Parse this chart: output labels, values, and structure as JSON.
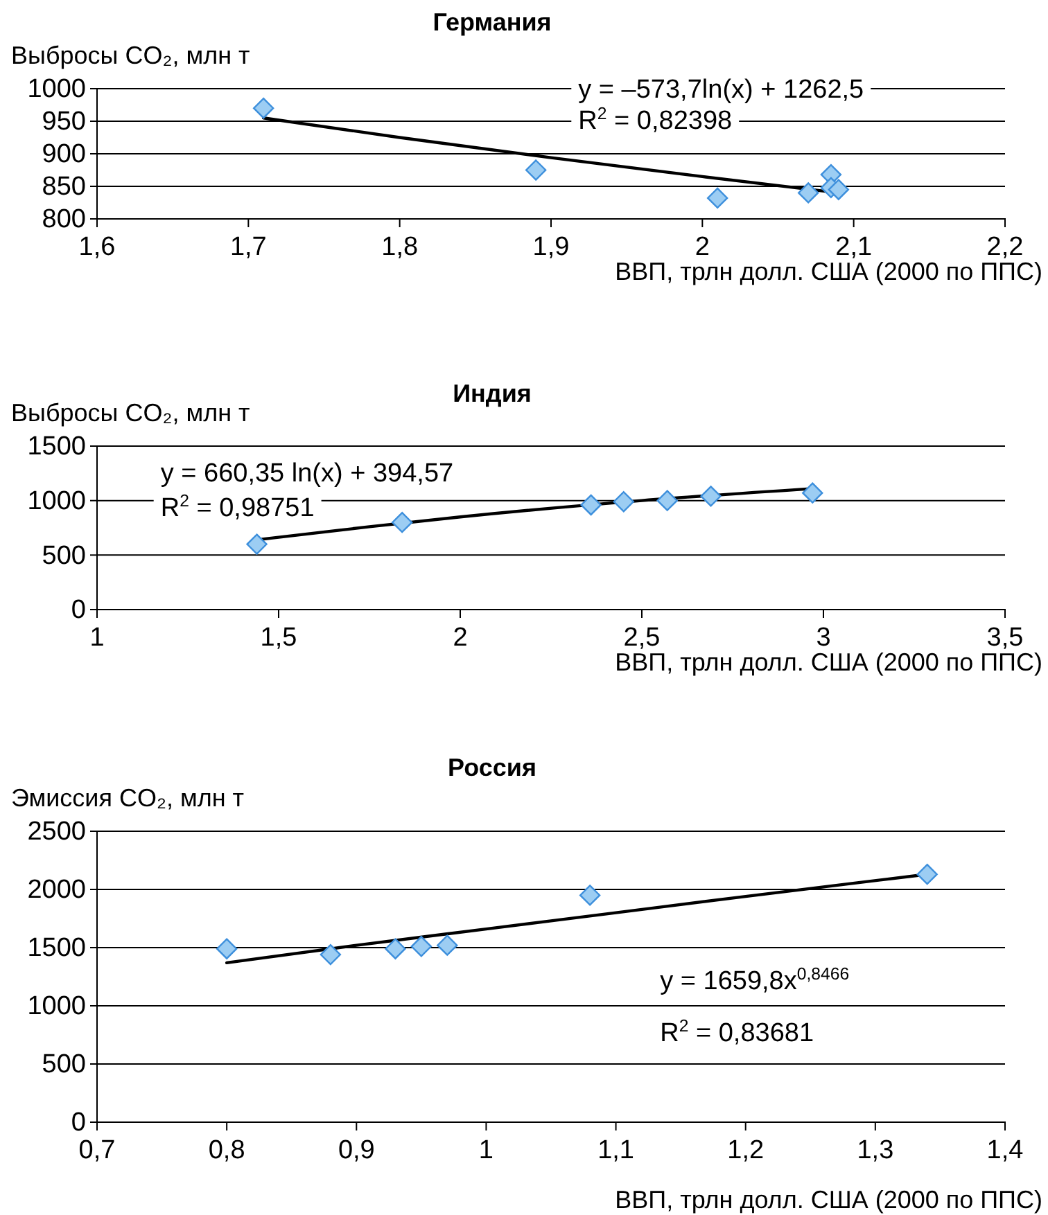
{
  "chart_data": [
    {
      "type": "scatter",
      "title": "Германия",
      "ylabel": "Выбросы CO₂, млн т",
      "xlabel": "ВВП, трлн долл. США (2000 по ППС)",
      "xlim": [
        1.6,
        2.2
      ],
      "xticks": [
        {
          "value": 1.6,
          "label": "1,6"
        },
        {
          "value": 1.7,
          "label": "1,7"
        },
        {
          "value": 1.8,
          "label": "1,8"
        },
        {
          "value": 1.9,
          "label": "1,9"
        },
        {
          "value": 2,
          "label": "2"
        },
        {
          "value": 2.1,
          "label": "2,1"
        },
        {
          "value": 2.2,
          "label": "2,2"
        }
      ],
      "ylim": [
        800,
        1000
      ],
      "yticks": [
        800,
        850,
        900,
        950,
        1000
      ],
      "grid": "y",
      "marker": "diamond",
      "annotations": [
        "y = –573,7ln(x) + 1262,5",
        "R$^{2}$ = 0,82398"
      ],
      "series": [
        {
          "color": "#9ccdf3",
          "x": [
            1.71,
            1.89,
            2.01,
            2.07,
            2.085,
            2.085,
            2.09
          ],
          "values": [
            970,
            875,
            832,
            840,
            868,
            848,
            845
          ]
        },
        {
          "type": "line",
          "color": "#000000",
          "marker": "none",
          "x": [
            1.71,
            1.8,
            1.9,
            2.0,
            2.09
          ],
          "values": [
            955,
            925,
            894,
            865,
            840
          ]
        }
      ]
    },
    {
      "type": "scatter",
      "title": "Индия",
      "ylabel": "Выбросы CO₂, млн т",
      "xlabel": "ВВП, трлн долл. США (2000 по ППС)",
      "xlim": [
        1,
        3.5
      ],
      "xticks": [
        {
          "value": 1,
          "label": "1"
        },
        {
          "value": 1.5,
          "label": "1,5"
        },
        {
          "value": 2,
          "label": "2"
        },
        {
          "value": 2.5,
          "label": "2,5"
        },
        {
          "value": 3,
          "label": "3"
        },
        {
          "value": 3.5,
          "label": "3,5"
        }
      ],
      "ylim": [
        0,
        1500
      ],
      "yticks": [
        0,
        500,
        1000,
        1500
      ],
      "grid": "y",
      "marker": "diamond",
      "annotations": [
        "y = 660,35 ln(x) + 394,57",
        "R$^{2}$ = 0,98751"
      ],
      "series": [
        {
          "color": "#9ccdf3",
          "x": [
            1.44,
            1.84,
            2.36,
            2.45,
            2.57,
            2.69,
            2.97
          ],
          "values": [
            600,
            800,
            960,
            990,
            1000,
            1040,
            1070
          ]
        },
        {
          "type": "line",
          "color": "#000000",
          "marker": "none",
          "x": [
            1.44,
            1.75,
            2.0,
            2.5,
            2.97
          ],
          "values": [
            640,
            760,
            850,
            1000,
            1110
          ]
        }
      ]
    },
    {
      "type": "scatter",
      "title": "Россия",
      "ylabel": "Эмиссия CO₂, млн т",
      "xlabel": "ВВП, трлн долл. США (2000 по ППС)",
      "xlim": [
        0.7,
        1.4
      ],
      "xticks": [
        {
          "value": 0.7,
          "label": "0,7"
        },
        {
          "value": 0.8,
          "label": "0,8"
        },
        {
          "value": 0.9,
          "label": "0,9"
        },
        {
          "value": 1,
          "label": "1"
        },
        {
          "value": 1.1,
          "label": "1,1"
        },
        {
          "value": 1.2,
          "label": "1,2"
        },
        {
          "value": 1.3,
          "label": "1,3"
        },
        {
          "value": 1.4,
          "label": "1,4"
        }
      ],
      "ylim": [
        0,
        2500
      ],
      "yticks": [
        0,
        500,
        1000,
        1500,
        2000,
        2500
      ],
      "grid": "y",
      "marker": "diamond",
      "annotations": [
        "y = 1659,8x$^{0,8466}$",
        "R$^{2}$ = 0,83681"
      ],
      "series": [
        {
          "color": "#9ccdf3",
          "x": [
            0.8,
            0.88,
            0.93,
            0.95,
            0.97,
            1.08,
            1.34
          ],
          "values": [
            1490,
            1440,
            1490,
            1510,
            1520,
            1950,
            2130
          ]
        },
        {
          "type": "line",
          "color": "#000000",
          "marker": "none",
          "x": [
            0.8,
            0.9,
            1.0,
            1.1,
            1.2,
            1.34
          ],
          "values": [
            1370,
            1520,
            1660,
            1800,
            1940,
            2130
          ]
        }
      ]
    }
  ]
}
